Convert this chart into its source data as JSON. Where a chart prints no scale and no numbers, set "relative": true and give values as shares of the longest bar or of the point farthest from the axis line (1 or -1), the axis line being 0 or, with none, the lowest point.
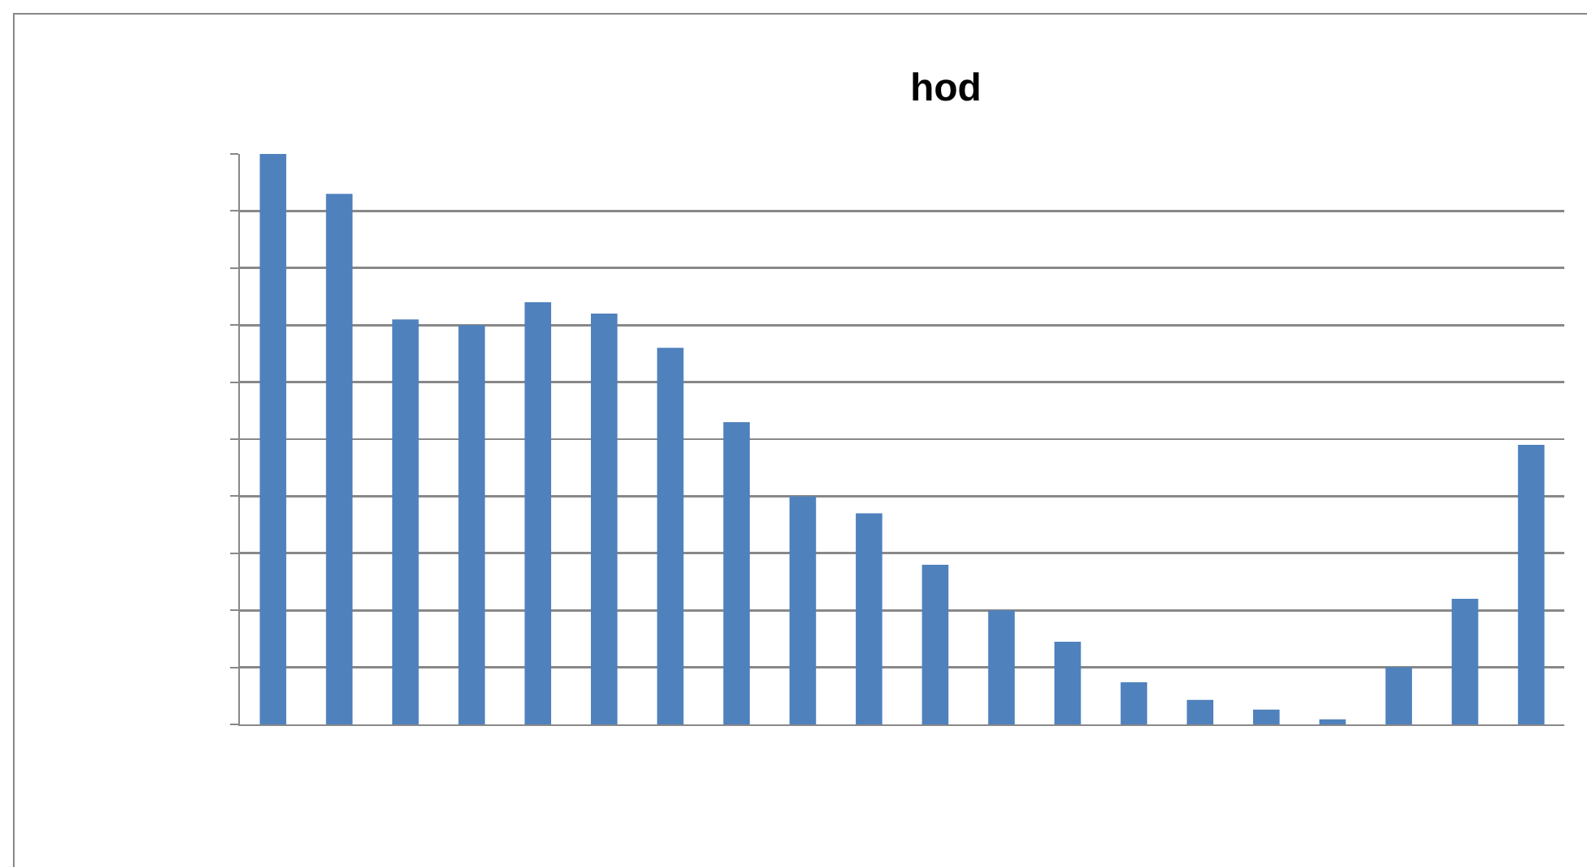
{
  "chart_data": {
    "type": "bar",
    "title": "hod",
    "relative": true,
    "grid": "y",
    "legend": false,
    "color": "#4f81bd",
    "categories": [
      null,
      null,
      null,
      null,
      null,
      null,
      null,
      null,
      null,
      null,
      null,
      null,
      null,
      null,
      null,
      null,
      null,
      null,
      null,
      null
    ],
    "values": [
      1.0,
      0.93,
      0.71,
      0.7,
      0.74,
      0.72,
      0.66,
      0.53,
      0.4,
      0.37,
      0.28,
      0.2,
      0.145,
      0.074,
      0.043,
      0.026,
      0.009,
      0.1,
      0.22,
      0.49
    ]
  }
}
